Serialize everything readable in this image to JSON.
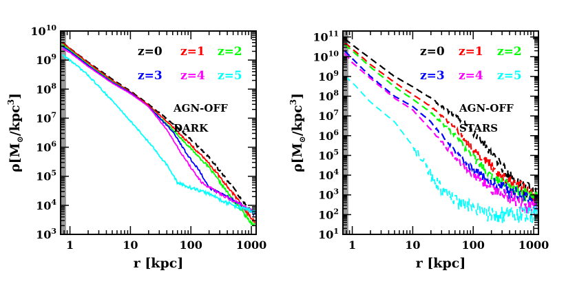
{
  "chart_data": [
    {
      "type": "line",
      "xscale": "log",
      "yscale": "log",
      "xlim": [
        0.7,
        1200
      ],
      "ylim": [
        1000,
        10000000000
      ],
      "xlabel": "r [kpc]",
      "ylabel": "ρ[M⊙/kpc³]",
      "ylabel_parts": {
        "pre": "ρ[M",
        "sub": "⊙",
        "mid": "/kpc",
        "sup": "3",
        "post": "]"
      },
      "xticks": [
        {
          "value": 1,
          "label": "1"
        },
        {
          "value": 10,
          "label": "10"
        },
        {
          "value": 100,
          "label": "100"
        },
        {
          "value": 1000,
          "label": "1000"
        }
      ],
      "yticks": [
        {
          "value": 1000,
          "base": "10",
          "exp": "3"
        },
        {
          "value": 10000,
          "base": "10",
          "exp": "4"
        },
        {
          "value": 100000,
          "base": "10",
          "exp": "5"
        },
        {
          "value": 1000000,
          "base": "10",
          "exp": "6"
        },
        {
          "value": 10000000,
          "base": "10",
          "exp": "7"
        },
        {
          "value": 100000000,
          "base": "10",
          "exp": "8"
        },
        {
          "value": 1000000000,
          "base": "10",
          "exp": "9"
        },
        {
          "value": 10000000000,
          "base": "10",
          "exp": "10"
        }
      ],
      "shaded_region": {
        "x": [
          0.7,
          0.86
        ],
        "color": "#999999"
      },
      "annotations": [
        "AGN-OFF",
        "DARK"
      ],
      "legend_position": "top-right",
      "series": [
        {
          "name": "z=0",
          "color": "#000000",
          "x": [
            0.75,
            1,
            2,
            5,
            10,
            20,
            50,
            100,
            200,
            500,
            1000,
            1150
          ],
          "y": [
            4000000000,
            2500000000,
            850000000,
            220000000,
            85000000,
            30000000,
            6500000,
            1800000,
            450000,
            40000,
            6000,
            4500
          ]
        },
        {
          "name": "z=1",
          "color": "#ff0000",
          "x": [
            0.75,
            1,
            2,
            5,
            10,
            20,
            50,
            100,
            200,
            500,
            1000,
            1150
          ],
          "y": [
            4000000000,
            2500000000,
            800000000,
            200000000,
            80000000,
            28000000,
            5000000,
            1200000,
            280000,
            25000,
            3500,
            2500
          ]
        },
        {
          "name": "z=2",
          "color": "#00ff00",
          "x": [
            0.75,
            1,
            2,
            5,
            10,
            20,
            50,
            100,
            200,
            500,
            1000,
            1150
          ],
          "y": [
            3500000000,
            2200000000,
            700000000,
            180000000,
            75000000,
            25000000,
            4000000,
            900000,
            200000,
            15000,
            2500,
            2200
          ]
        },
        {
          "name": "z=3",
          "color": "#0000ff",
          "x": [
            0.75,
            1,
            2,
            5,
            10,
            20,
            50,
            90,
            140,
            200,
            400,
            700,
            1150
          ],
          "y": [
            3000000000,
            2000000000,
            650000000,
            170000000,
            75000000,
            25000000,
            3500000,
            500000,
            150000,
            40000,
            20000,
            10000,
            5000
          ]
        },
        {
          "name": "z=4",
          "color": "#ff00ff",
          "x": [
            0.75,
            1,
            2,
            5,
            10,
            20,
            40,
            70,
            100,
            150,
            300,
            600,
            1150
          ],
          "y": [
            2500000000,
            1800000000,
            600000000,
            160000000,
            70000000,
            25000000,
            4000000,
            600000,
            200000,
            60000,
            25000,
            12000,
            6000
          ]
        },
        {
          "name": "z=5",
          "color": "#00ffff",
          "x": [
            0.75,
            1,
            2,
            5,
            10,
            20,
            40,
            60,
            100,
            200,
            400,
            700,
            1150
          ],
          "y": [
            1500000000,
            1000000000,
            300000000,
            40000000,
            8000000,
            1500000,
            250000,
            60000,
            40000,
            25000,
            12000,
            8000,
            6000
          ]
        }
      ]
    },
    {
      "type": "line",
      "xscale": "log",
      "yscale": "log",
      "xlim": [
        0.7,
        1200
      ],
      "ylim": [
        10,
        200000000000
      ],
      "xlabel": "r [kpc]",
      "ylabel": "ρ[M⊙/kpc³]",
      "ylabel_parts": {
        "pre": "ρ[M",
        "sub": "⊙",
        "mid": "/kpc",
        "sup": "3",
        "post": "]"
      },
      "xticks": [
        {
          "value": 1,
          "label": "1"
        },
        {
          "value": 10,
          "label": "10"
        },
        {
          "value": 100,
          "label": "100"
        },
        {
          "value": 1000,
          "label": "1000"
        }
      ],
      "yticks": [
        {
          "value": 10,
          "base": "10",
          "exp": "1"
        },
        {
          "value": 100,
          "base": "10",
          "exp": "2"
        },
        {
          "value": 1000,
          "base": "10",
          "exp": "3"
        },
        {
          "value": 10000,
          "base": "10",
          "exp": "4"
        },
        {
          "value": 100000,
          "base": "10",
          "exp": "5"
        },
        {
          "value": 1000000,
          "base": "10",
          "exp": "6"
        },
        {
          "value": 10000000,
          "base": "10",
          "exp": "7"
        },
        {
          "value": 100000000,
          "base": "10",
          "exp": "8"
        },
        {
          "value": 1000000000,
          "base": "10",
          "exp": "9"
        },
        {
          "value": 10000000000,
          "base": "10",
          "exp": "10"
        },
        {
          "value": 100000000000,
          "base": "10",
          "exp": "11"
        }
      ],
      "shaded_region": {
        "x": [
          0.7,
          0.86
        ],
        "color": "#999999"
      },
      "annotations": [
        "AGN-OFF",
        "STARS"
      ],
      "legend_position": "top-right",
      "series": [
        {
          "name": "z=0",
          "color": "#000000",
          "x": [
            0.75,
            1,
            2,
            5,
            10,
            20,
            50,
            100,
            200,
            400,
            700,
            1150
          ],
          "y": [
            80000000000,
            40000000000,
            8000000000,
            1000000000,
            300000000,
            80000000,
            10000000,
            1500000,
            150000,
            8000,
            2000,
            1000
          ]
        },
        {
          "name": "z=1",
          "color": "#ff0000",
          "x": [
            0.75,
            1,
            2,
            5,
            10,
            20,
            50,
            100,
            200,
            400,
            700,
            1150
          ],
          "y": [
            50000000000,
            25000000000,
            4000000000,
            500000000,
            120000000,
            30000000,
            2500000,
            200000,
            30000,
            5000,
            2000,
            500
          ]
        },
        {
          "name": "z=2",
          "color": "#00ff00",
          "x": [
            0.75,
            1,
            2,
            5,
            10,
            20,
            50,
            100,
            200,
            400,
            700,
            1150
          ],
          "y": [
            40000000000,
            20000000000,
            3000000000,
            300000000,
            70000000,
            15000000,
            1000000,
            80000,
            10000,
            2000,
            1000,
            500
          ]
        },
        {
          "name": "z=3",
          "color": "#0000ff",
          "x": [
            0.75,
            1,
            2,
            5,
            10,
            20,
            50,
            100,
            200,
            400,
            700,
            1150
          ],
          "y": [
            20000000000,
            8000000000,
            1000000000,
            100000000,
            30000000,
            5000000,
            150000,
            20000,
            5000,
            1500,
            800,
            300
          ]
        },
        {
          "name": "z=4",
          "color": "#ff00ff",
          "x": [
            0.75,
            1,
            2,
            5,
            10,
            20,
            50,
            100,
            200,
            400,
            700,
            1150
          ],
          "y": [
            15000000000,
            5000000000,
            800000000,
            80000000,
            20000000,
            2000000,
            80000,
            10000,
            2000,
            800,
            300,
            200
          ]
        },
        {
          "name": "z=5",
          "color": "#00ffff",
          "x": [
            0.75,
            1,
            2,
            5,
            10,
            15,
            20,
            30,
            50,
            100,
            200,
            500,
            1150
          ],
          "y": [
            1000000000,
            500000000,
            50000000,
            5000000,
            300000,
            50000,
            10000,
            2000,
            500,
            200,
            100,
            100,
            100
          ]
        }
      ]
    }
  ]
}
